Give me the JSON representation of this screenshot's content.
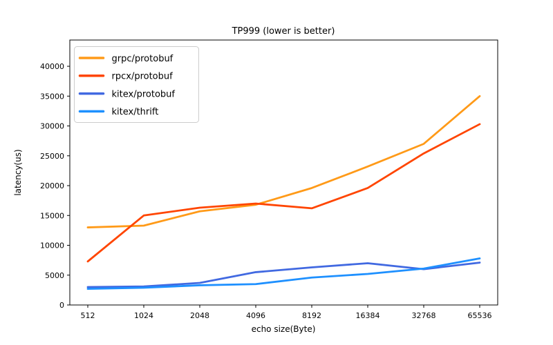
{
  "chart_data": {
    "type": "line",
    "title": "TP999 (lower is better)",
    "xlabel": "echo size(Byte)",
    "ylabel": "latency(us)",
    "categories": [
      "512",
      "1024",
      "2048",
      "4096",
      "8192",
      "16384",
      "32768",
      "65536"
    ],
    "y_ticks": [
      0,
      5000,
      10000,
      15000,
      20000,
      25000,
      30000,
      35000,
      40000
    ],
    "ylim": [
      0,
      44400
    ],
    "grid": false,
    "legend_position": "upper-left",
    "axis_color": "#000000",
    "legend_border_color": "#cccccc",
    "series": [
      {
        "name": "grpc/protobuf",
        "color": "#ff9a18",
        "values": [
          13000,
          13300,
          15700,
          16800,
          19600,
          23200,
          27000,
          35000
        ]
      },
      {
        "name": "rpcx/protobuf",
        "color": "#ff4500",
        "values": [
          7300,
          15000,
          16300,
          17000,
          16200,
          19600,
          25400,
          30300
        ]
      },
      {
        "name": "kitex/protobuf",
        "color": "#4169e1",
        "values": [
          3000,
          3100,
          3700,
          5500,
          6300,
          7000,
          6000,
          7100
        ]
      },
      {
        "name": "kitex/thrift",
        "color": "#1e90ff",
        "values": [
          2700,
          2900,
          3300,
          3500,
          4600,
          5200,
          6100,
          7800
        ]
      }
    ]
  }
}
